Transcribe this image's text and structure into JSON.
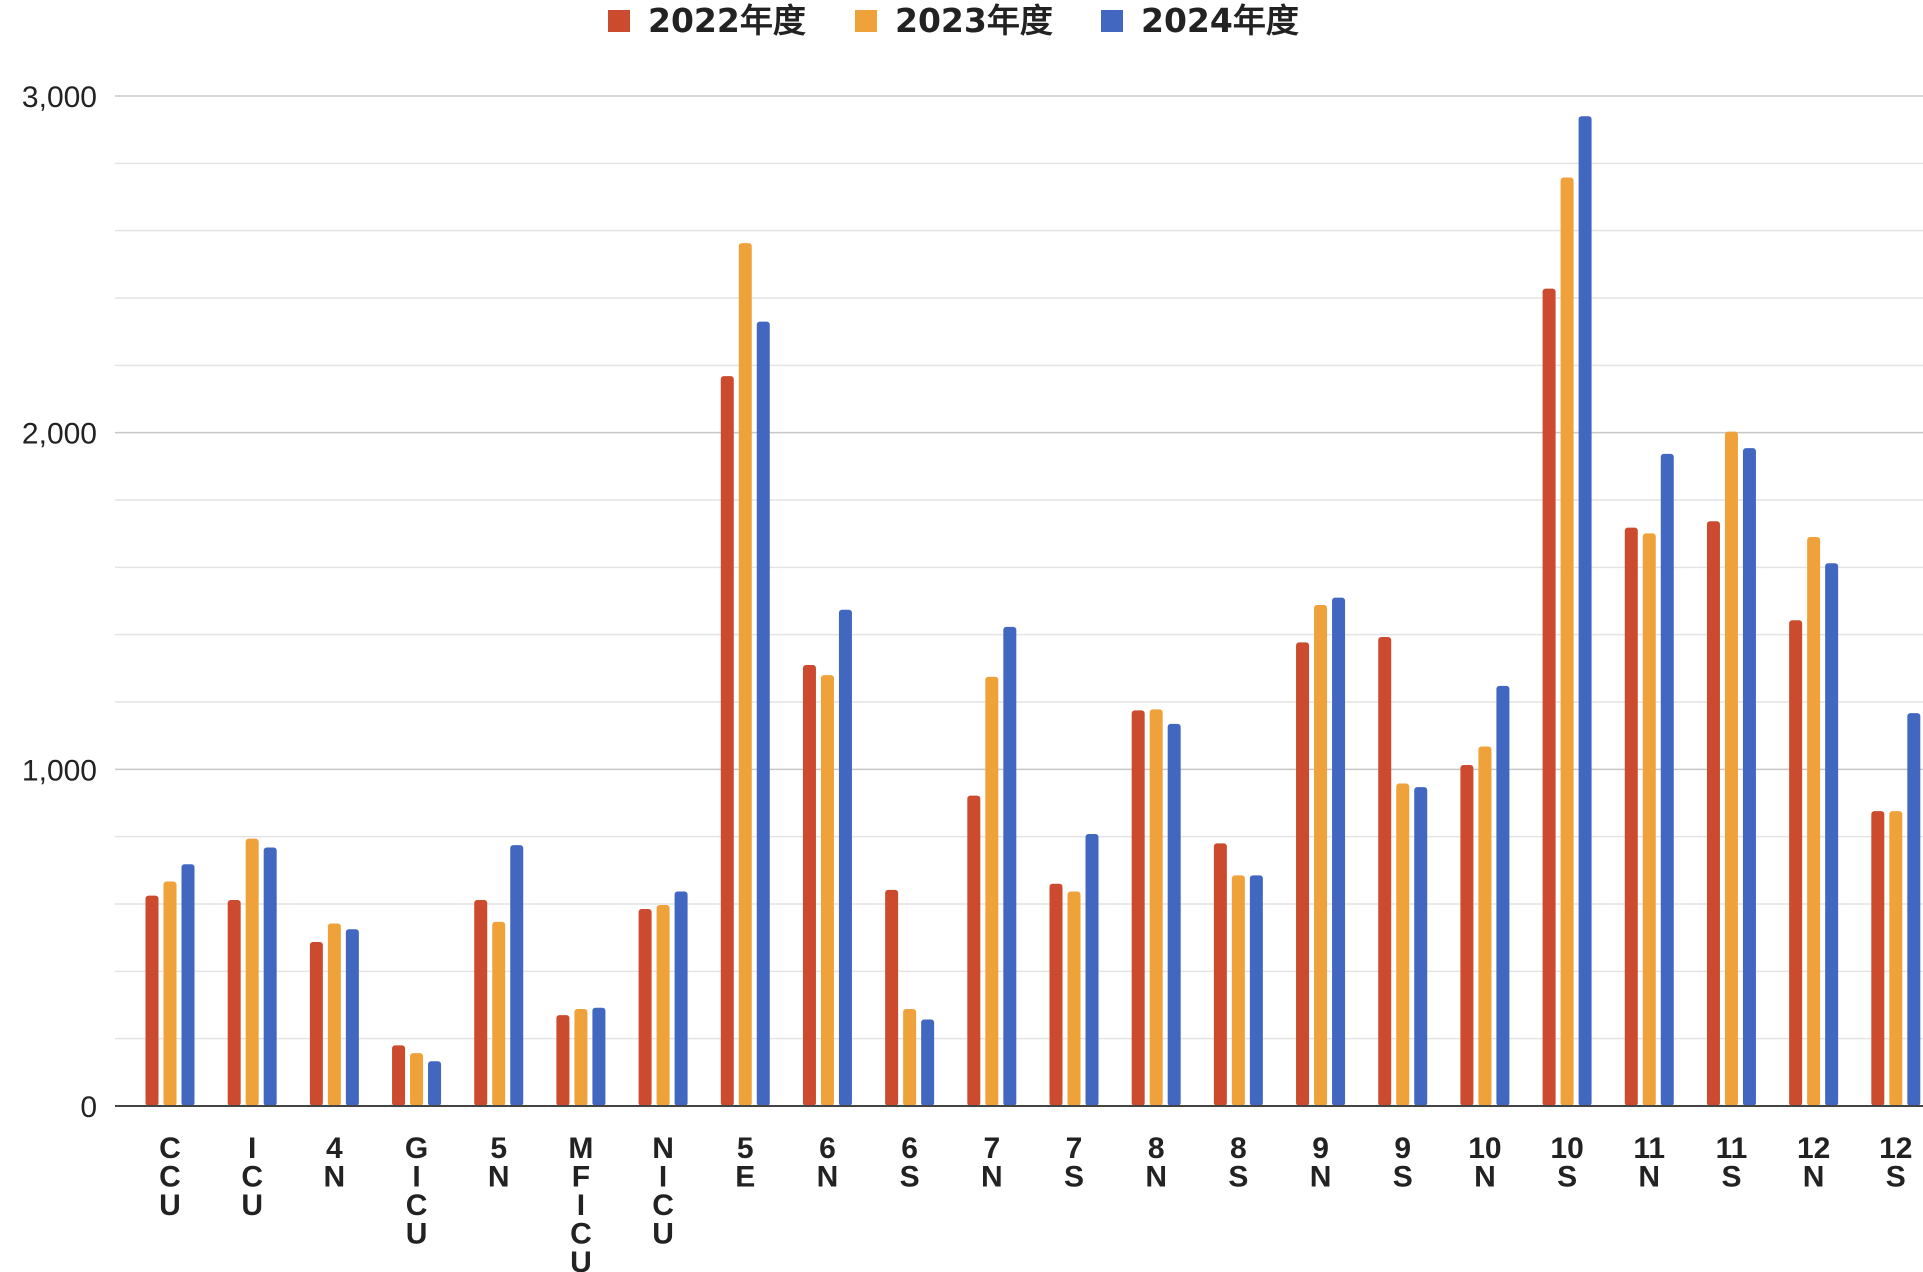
{
  "chart_data": {
    "type": "bar",
    "title": "",
    "xlabel": "",
    "ylabel": "",
    "ylim": [
      0,
      3000
    ],
    "yticks": [
      0,
      1000,
      2000,
      3000
    ],
    "ytick_labels": [
      "0",
      "1,000",
      "2,000",
      "3,000"
    ],
    "minor_grid_step": 200,
    "grid": true,
    "legend_position": "top-center",
    "categories": [
      "CCU",
      "ICU",
      "4N",
      "GICU",
      "5N",
      "MFICU",
      "NICU",
      "5E",
      "6N",
      "6S",
      "7N",
      "7S",
      "8N",
      "8S",
      "9N",
      "9S",
      "10N",
      "10S",
      "11N",
      "11S",
      "12N",
      "12S"
    ],
    "category_labels": [
      [
        "C",
        "C",
        "U"
      ],
      [
        "I",
        "C",
        "U"
      ],
      [
        "4",
        "N"
      ],
      [
        "G",
        "I",
        "C",
        "U"
      ],
      [
        "5",
        "N"
      ],
      [
        "M",
        "F",
        "I",
        "C",
        "U"
      ],
      [
        "N",
        "I",
        "C",
        "U"
      ],
      [
        "5",
        "E"
      ],
      [
        "6",
        "N"
      ],
      [
        "6",
        "S"
      ],
      [
        "7",
        "N"
      ],
      [
        "7",
        "S"
      ],
      [
        "8",
        "N"
      ],
      [
        "8",
        "S"
      ],
      [
        "9",
        "N"
      ],
      [
        "9",
        "S"
      ],
      [
        "10",
        "N"
      ],
      [
        "10",
        "S"
      ],
      [
        "11",
        "N"
      ],
      [
        "11",
        "S"
      ],
      [
        "12",
        "N"
      ],
      [
        "12",
        "S"
      ]
    ],
    "series": [
      {
        "name": "2022年度",
        "color": "#cc4a2e",
        "values": [
          625,
          612,
          487,
          180,
          612,
          270,
          585,
          2168,
          1310,
          642,
          922,
          660,
          1175,
          780,
          1377,
          1393,
          1013,
          2428,
          1718,
          1737,
          1443,
          876
        ]
      },
      {
        "name": "2023年度",
        "color": "#f0a23a",
        "values": [
          667,
          794,
          542,
          157,
          547,
          288,
          597,
          2563,
          1280,
          288,
          1275,
          637,
          1178,
          685,
          1488,
          958,
          1068,
          2758,
          1701,
          2003,
          1690,
          876
        ]
      },
      {
        "name": "2024年度",
        "color": "#4267c0",
        "values": [
          718,
          768,
          525,
          133,
          775,
          292,
          637,
          2330,
          1474,
          257,
          1423,
          808,
          1135,
          685,
          1510,
          947,
          1248,
          2940,
          1937,
          1954,
          1612,
          1167
        ]
      }
    ]
  }
}
